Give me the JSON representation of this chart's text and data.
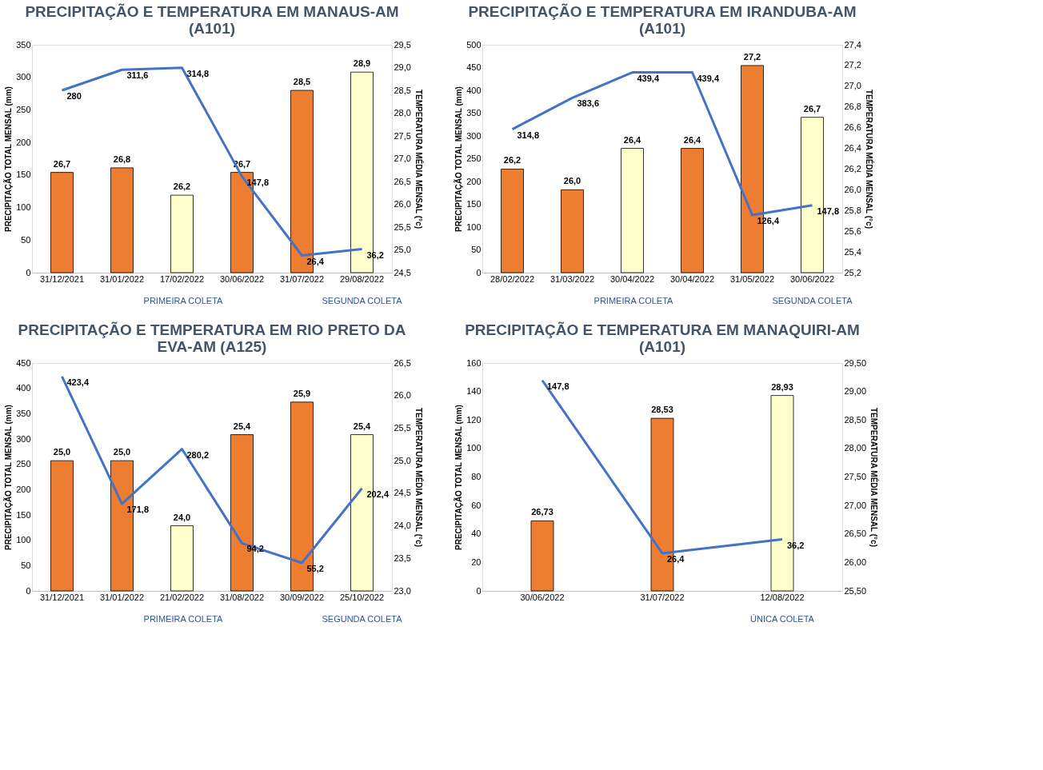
{
  "chart_data": [
    {
      "type": "bar",
      "title": "PRECIPITAÇÃO E TEMPERATURA EM MANAUS-AM (A101)",
      "ylabel": "PRECIPITAÇÃO TOTAL MENSAL (mm)",
      "y2label": "TEMPERATURA MÉDIA MENSAL (°c)",
      "categories": [
        "31/12/2021",
        "31/01/2022",
        "17/02/2022",
        "30/06/2022",
        "31/07/2022",
        "29/08/2022"
      ],
      "ylim": [
        0,
        350
      ],
      "yticks": [
        0,
        50,
        100,
        150,
        200,
        250,
        300,
        350
      ],
      "y2lim": [
        24.5,
        29.5
      ],
      "y2ticks": [
        {
          "value": 24.5,
          "label": "24,5"
        },
        {
          "value": 25.0,
          "label": "25,0"
        },
        {
          "value": 25.5,
          "label": "25,5"
        },
        {
          "value": 26.0,
          "label": "26,0"
        },
        {
          "value": 26.5,
          "label": "26,5"
        },
        {
          "value": 27.0,
          "label": "27,0"
        },
        {
          "value": 27.5,
          "label": "27,5"
        },
        {
          "value": 28.0,
          "label": "28,0"
        },
        {
          "value": 28.5,
          "label": "28,5"
        },
        {
          "value": 29.0,
          "label": "29,0"
        },
        {
          "value": 29.5,
          "label": "29,5"
        }
      ],
      "series": [
        {
          "type": "bar",
          "axis": "y2",
          "colors": [
            "#ed7d31",
            "#ed7d31",
            "#ffffcc",
            "#ed7d31",
            "#ed7d31",
            "#ffffcc"
          ],
          "values": [
            26.7,
            26.8,
            26.2,
            26.7,
            28.5,
            28.9
          ],
          "value_labels": [
            "26,7",
            "26,8",
            "26,2",
            "26,7",
            "28,5",
            "28,9"
          ]
        },
        {
          "type": "line",
          "color": "#4472c4",
          "values": [
            280,
            311.6,
            314.8,
            147.8,
            26.4,
            36.2
          ],
          "value_labels": [
            "280",
            "311,6",
            "314,8",
            "147,8",
            "26,4",
            "36,2"
          ]
        }
      ],
      "annotations": [
        "PRIMEIRA COLETA",
        "SEGUNDA COLETA"
      ]
    },
    {
      "type": "bar",
      "title": "PRECIPITAÇÃO E TEMPERATURA EM IRANDUBA-AM (A101)",
      "ylabel": "PRECIPITAÇÃO TOTAL MENSAL (mm)",
      "y2label": "TEMPERATURA MÉDIA MENSAL (°c)",
      "categories": [
        "28/02/2022",
        "31/03/2022",
        "30/04/2022",
        "30/04/2022",
        "31/05/2022",
        "30/06/2022"
      ],
      "ylim": [
        0,
        500
      ],
      "yticks": [
        0,
        50,
        100,
        150,
        200,
        250,
        300,
        350,
        400,
        450,
        500
      ],
      "y2lim": [
        25.2,
        27.4
      ],
      "y2ticks": [
        {
          "value": 25.2,
          "label": "25,2"
        },
        {
          "value": 25.4,
          "label": "25,4"
        },
        {
          "value": 25.6,
          "label": "25,6"
        },
        {
          "value": 25.8,
          "label": "25,8"
        },
        {
          "value": 26.0,
          "label": "26,0"
        },
        {
          "value": 26.2,
          "label": "26,2"
        },
        {
          "value": 26.4,
          "label": "26,4"
        },
        {
          "value": 26.6,
          "label": "26,6"
        },
        {
          "value": 26.8,
          "label": "26,8"
        },
        {
          "value": 27.0,
          "label": "27,0"
        },
        {
          "value": 27.2,
          "label": "27,2"
        },
        {
          "value": 27.4,
          "label": "27,4"
        }
      ],
      "series": [
        {
          "type": "bar",
          "axis": "y2",
          "colors": [
            "#ed7d31",
            "#ed7d31",
            "#ffffcc",
            "#ed7d31",
            "#ed7d31",
            "#ffffcc"
          ],
          "values": [
            26.2,
            26.0,
            26.4,
            26.4,
            27.2,
            26.7
          ],
          "value_labels": [
            "26,2",
            "26,0",
            "26,4",
            "26,4",
            "27,2",
            "26,7"
          ]
        },
        {
          "type": "line",
          "color": "#4472c4",
          "values": [
            314.8,
            383.6,
            439.4,
            439.4,
            126.4,
            147.8
          ],
          "value_labels": [
            "314,8",
            "383,6",
            "439,4",
            "439,4",
            "126,4",
            "147,8"
          ]
        }
      ],
      "annotations": [
        "PRIMEIRA COLETA",
        "SEGUNDA COLETA"
      ]
    },
    {
      "type": "bar",
      "title": "PRECIPITAÇÃO E TEMPERATURA EM RIO PRETO DA EVA-AM (A125)",
      "ylabel": "PRECIPITAÇÃO TOTAL MENSAL (mm)",
      "y2label": "TEMPERATURA MÉDIA MENSAL (°c)",
      "categories": [
        "31/12/2021",
        "31/01/2022",
        "21/02/2022",
        "31/08/2022",
        "30/09/2022",
        "25/10/2022"
      ],
      "ylim": [
        0,
        450
      ],
      "yticks": [
        0,
        50,
        100,
        150,
        200,
        250,
        300,
        350,
        400,
        450
      ],
      "y2lim": [
        23.0,
        26.5
      ],
      "y2ticks": [
        {
          "value": 23.0,
          "label": "23,0"
        },
        {
          "value": 23.5,
          "label": "23,5"
        },
        {
          "value": 24.0,
          "label": "24,0"
        },
        {
          "value": 24.5,
          "label": "24,5"
        },
        {
          "value": 25.0,
          "label": "25,0"
        },
        {
          "value": 25.5,
          "label": "25,5"
        },
        {
          "value": 26.0,
          "label": "26,0"
        },
        {
          "value": 26.5,
          "label": "26,5"
        }
      ],
      "series": [
        {
          "type": "bar",
          "axis": "y2",
          "colors": [
            "#ed7d31",
            "#ed7d31",
            "#ffffcc",
            "#ed7d31",
            "#ed7d31",
            "#ffffcc"
          ],
          "values": [
            25.0,
            25.0,
            24.0,
            25.4,
            25.9,
            25.4
          ],
          "value_labels": [
            "25,0",
            "25,0",
            "24,0",
            "25,4",
            "25,9",
            "25,4"
          ]
        },
        {
          "type": "line",
          "color": "#4472c4",
          "values": [
            423.4,
            171.8,
            280.2,
            94.2,
            55.2,
            202.4
          ],
          "value_labels": [
            "423,4",
            "171,8",
            "280,2",
            "94,2",
            "55,2",
            "202,4"
          ]
        }
      ],
      "annotations": [
        "PRIMEIRA COLETA",
        "SEGUNDA COLETA"
      ]
    },
    {
      "type": "bar",
      "title": "PRECIPITAÇÃO E TEMPERATURA EM MANAQUIRI-AM (A101)",
      "ylabel": "PRECIPITAÇÃO TOTAL MENSAL (mm)",
      "y2label": "TEMPERATURA MÉDIA MENSAL (°c)",
      "categories": [
        "30/06/2022",
        "31/07/2022",
        "12/08/2022"
      ],
      "ylim": [
        0,
        160
      ],
      "yticks": [
        0,
        20,
        40,
        60,
        80,
        100,
        120,
        140,
        160
      ],
      "y2lim": [
        25.5,
        29.5
      ],
      "y2ticks": [
        {
          "value": 25.5,
          "label": "25,50"
        },
        {
          "value": 26.0,
          "label": "26,00"
        },
        {
          "value": 26.5,
          "label": "26,50"
        },
        {
          "value": 27.0,
          "label": "27,00"
        },
        {
          "value": 27.5,
          "label": "27,50"
        },
        {
          "value": 28.0,
          "label": "28,00"
        },
        {
          "value": 28.5,
          "label": "28,50"
        },
        {
          "value": 29.0,
          "label": "29,00"
        },
        {
          "value": 29.5,
          "label": "29,50"
        }
      ],
      "series": [
        {
          "type": "bar",
          "axis": "y2",
          "colors": [
            "#ed7d31",
            "#ed7d31",
            "#ffffcc"
          ],
          "values": [
            26.73,
            28.53,
            28.93
          ],
          "value_labels": [
            "26,73",
            "28,53",
            "28,93"
          ]
        },
        {
          "type": "line",
          "color": "#4472c4",
          "values": [
            147.8,
            26.4,
            36.2
          ],
          "value_labels": [
            "147,8",
            "26,4",
            "36,2"
          ]
        }
      ],
      "annotations": [
        "ÚNICA COLETA"
      ]
    }
  ]
}
